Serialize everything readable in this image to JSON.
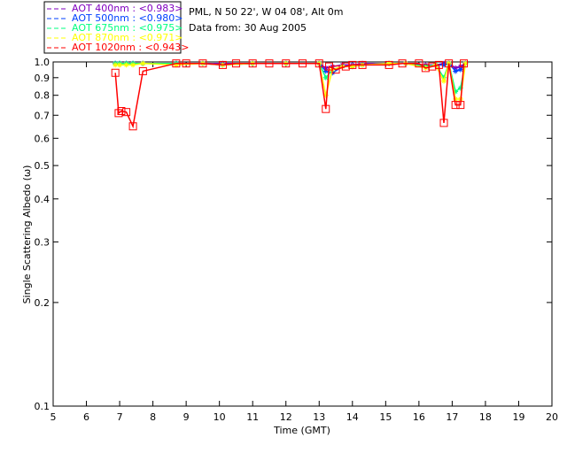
{
  "chart_data": {
    "type": "line",
    "title_lines": [
      "PML, N 50 22', W 04 08', Alt 0m",
      "Data from: 30 Aug 2005"
    ],
    "xlabel": "Time (GMT)",
    "ylabel": "Single Scattering Albedo (ω)",
    "xlim": [
      5,
      20
    ],
    "ylim": [
      0.1,
      1.0
    ],
    "yscale": "log",
    "xticks": [
      "5",
      "6",
      "7",
      "8",
      "9",
      "10",
      "11",
      "12",
      "13",
      "14",
      "15",
      "16",
      "17",
      "18",
      "19",
      "20"
    ],
    "yticks": [
      "0.1",
      "0.2",
      "0.3",
      "0.4",
      "0.5",
      "0.6",
      "0.7",
      "0.8",
      "0.9",
      "1.0"
    ],
    "legend_position": "top-left",
    "series": [
      {
        "name": "AOT  400nm : <0.983>",
        "color": "#8000c0",
        "x": [
          6.87,
          7.0,
          7.2,
          7.4,
          7.7,
          8.7,
          9.5,
          10.1,
          11,
          12,
          13.0,
          13.2,
          13.4,
          13.7,
          14.0,
          14.3,
          15.1,
          15.6,
          16.2,
          16.5,
          16.75,
          16.9,
          17.1,
          17.25,
          17.4
        ],
        "y": [
          0.99,
          0.99,
          0.99,
          0.99,
          0.99,
          0.99,
          0.99,
          0.99,
          0.99,
          0.99,
          0.99,
          0.96,
          0.97,
          0.98,
          0.98,
          0.99,
          0.99,
          0.99,
          0.98,
          0.98,
          0.99,
          0.99,
          0.96,
          0.97,
          0.99
        ]
      },
      {
        "name": "AOT  500nm : <0.980>",
        "color": "#0040ff",
        "x": [
          6.87,
          7.0,
          7.2,
          7.4,
          7.7,
          8.7,
          9.5,
          10.1,
          11,
          12,
          13.0,
          13.2,
          13.4,
          13.7,
          14.0,
          14.3,
          15.1,
          15.6,
          16.2,
          16.5,
          16.75,
          16.9,
          17.1,
          17.25,
          17.4
        ],
        "y": [
          0.99,
          0.99,
          0.99,
          0.99,
          0.99,
          0.99,
          0.99,
          0.98,
          0.99,
          0.99,
          0.99,
          0.94,
          0.93,
          0.97,
          0.97,
          0.98,
          0.99,
          0.99,
          0.97,
          0.98,
          0.98,
          0.99,
          0.94,
          0.95,
          0.99
        ]
      },
      {
        "name": "AOT  675nm : <0.975>",
        "color": "#00ff80",
        "x": [
          6.87,
          7.0,
          7.2,
          7.4,
          7.7,
          8.7,
          9.5,
          10.1,
          11,
          12,
          13.0,
          13.2,
          13.4,
          13.7,
          14.0,
          14.3,
          15.1,
          15.6,
          16.2,
          16.5,
          16.75,
          16.9,
          17.1,
          17.25,
          17.4
        ],
        "y": [
          0.99,
          0.99,
          0.99,
          0.99,
          0.99,
          0.99,
          0.99,
          0.98,
          0.99,
          0.99,
          0.99,
          0.9,
          0.95,
          0.97,
          0.97,
          0.98,
          0.99,
          0.99,
          0.97,
          0.98,
          0.9,
          0.99,
          0.82,
          0.84,
          0.99
        ]
      },
      {
        "name": "AOT  870nm : <0.971>",
        "color": "#ffff00",
        "x": [
          6.87,
          7.0,
          7.2,
          7.4,
          7.7,
          8.7,
          9.5,
          10.1,
          11,
          12,
          13.0,
          13.2,
          13.4,
          13.7,
          14.0,
          14.3,
          15.1,
          15.6,
          16.2,
          16.5,
          16.75,
          16.9,
          17.1,
          17.25,
          17.4
        ],
        "y": [
          0.98,
          0.98,
          0.98,
          0.98,
          0.99,
          0.98,
          0.99,
          0.98,
          0.99,
          0.99,
          0.99,
          0.8,
          0.95,
          0.97,
          0.97,
          0.98,
          0.99,
          0.99,
          0.96,
          0.98,
          0.88,
          0.99,
          0.78,
          0.78,
          0.99
        ]
      },
      {
        "name": "AOT 1020nm : <0.943>",
        "color": "#ff0000",
        "x": [
          6.87,
          6.97,
          7.05,
          7.2,
          7.4,
          7.7,
          8.7,
          9.0,
          9.5,
          10.1,
          10.5,
          11,
          11.5,
          12,
          12.5,
          13.0,
          13.2,
          13.3,
          13.5,
          13.8,
          14.0,
          14.3,
          15.1,
          15.5,
          16.0,
          16.2,
          16.4,
          16.6,
          16.75,
          16.9,
          17.1,
          17.25,
          17.35
        ],
        "y": [
          0.93,
          0.71,
          0.72,
          0.715,
          0.65,
          0.94,
          0.99,
          0.99,
          0.99,
          0.98,
          0.99,
          0.99,
          0.99,
          0.99,
          0.99,
          0.99,
          0.73,
          0.97,
          0.95,
          0.97,
          0.98,
          0.98,
          0.98,
          0.99,
          0.99,
          0.96,
          0.97,
          0.98,
          0.665,
          0.99,
          0.75,
          0.75,
          0.99
        ]
      }
    ]
  }
}
